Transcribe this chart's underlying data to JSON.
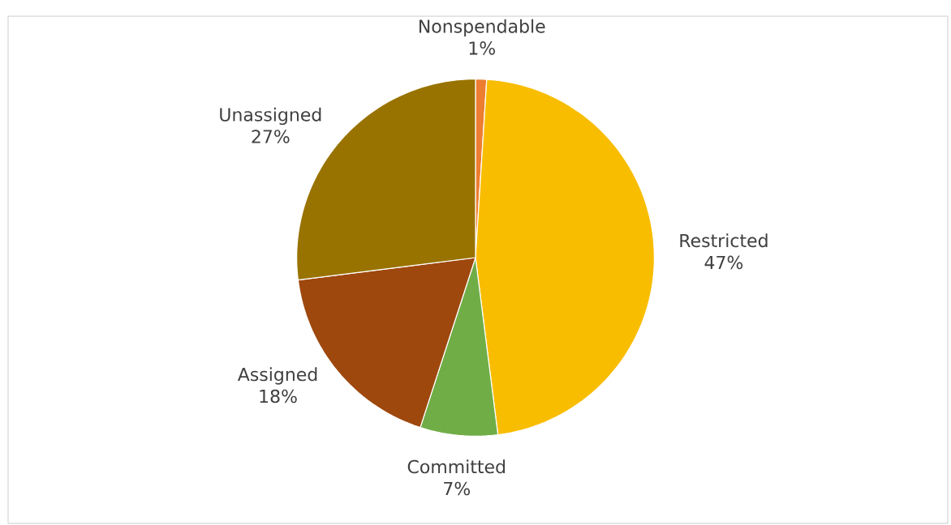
{
  "chart_data": {
    "type": "pie",
    "categories": [
      "Nonspendable",
      "Restricted",
      "Committed",
      "Assigned",
      "Unassigned"
    ],
    "values": [
      1,
      47,
      7,
      18,
      27
    ],
    "value_labels": [
      "1%",
      "47%",
      "7%",
      "18%",
      "27%"
    ],
    "colors": [
      "#ed7d31",
      "#f9bd00",
      "#70ad47",
      "#9e480e",
      "#997300"
    ]
  }
}
